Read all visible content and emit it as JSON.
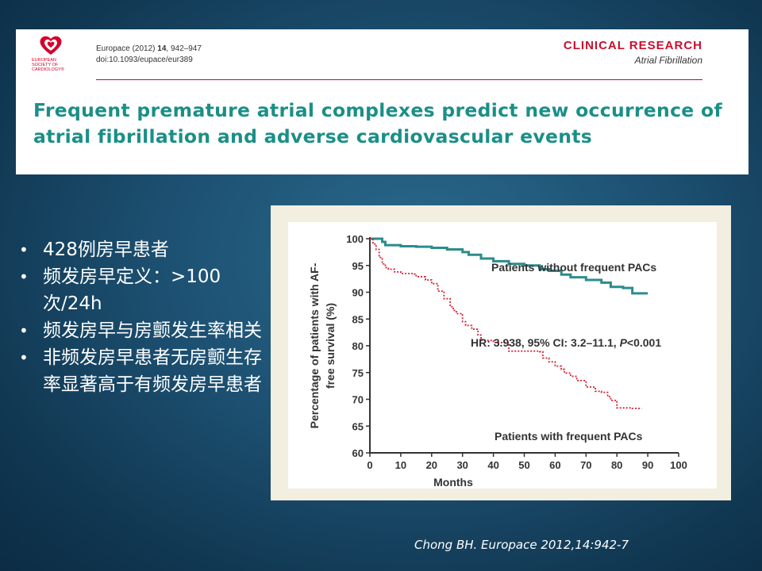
{
  "header": {
    "logo_text": [
      "EUROPEAN",
      "SOCIETY OF",
      "CARDIOLOGY®"
    ],
    "journal_ref_prefix": "Europace (2012) ",
    "journal_volume": "14",
    "journal_pages": ", 942–947",
    "doi": "doi:10.1093/eupace/eur389",
    "category": "CLINICAL RESEARCH",
    "section": "Atrial Fibrillation",
    "title": "Frequent premature atrial complexes predict new occurrence of atrial fibrillation and adverse cardiovascular events",
    "colors": {
      "accent_red": "#c8102e",
      "title_teal": "#1b8f87"
    }
  },
  "bullets": [
    "428例房早患者",
    "频发房早定义：>100次/24h",
    "频发房早与房颤发生率相关",
    "非频发房早患者无房颤生存率显著高于有频发房早患者"
  ],
  "chart_data": {
    "type": "line",
    "title": "",
    "xlabel": "Months",
    "ylabel": "Percentage of patients with AF-free survival (%)",
    "xlim": [
      0,
      100
    ],
    "ylim": [
      60,
      100
    ],
    "xticks": [
      0,
      10,
      20,
      30,
      40,
      50,
      60,
      70,
      80,
      90,
      100
    ],
    "yticks": [
      60,
      65,
      70,
      75,
      80,
      85,
      90,
      95,
      100
    ],
    "series": [
      {
        "name": "Patients without frequent PACs",
        "color": "#2b8c8c",
        "style": "solid",
        "x": [
          0,
          2,
          4,
          5,
          10,
          15,
          20,
          25,
          30,
          32,
          36,
          40,
          45,
          50,
          55,
          58,
          62,
          65,
          70,
          75,
          78,
          82,
          85,
          90
        ],
        "y": [
          100,
          100,
          99.4,
          98.8,
          98.6,
          98.5,
          98.3,
          98.0,
          97.5,
          97.0,
          96.3,
          95.8,
          95.3,
          95.0,
          94.3,
          94.0,
          93.3,
          92.8,
          92.3,
          91.8,
          91.0,
          90.8,
          89.8,
          89.8
        ]
      },
      {
        "name": "Patients with frequent PACs",
        "color": "#d22035",
        "style": "dotted",
        "x": [
          0,
          1,
          2,
          3,
          4,
          5,
          6,
          8,
          10,
          14,
          15,
          18,
          20,
          22,
          24,
          26,
          27,
          28,
          30,
          31,
          33,
          35,
          36,
          40,
          45,
          50,
          55,
          56,
          58,
          60,
          62,
          63,
          65,
          67,
          70,
          73,
          75,
          77,
          78,
          80,
          85,
          88
        ],
        "y": [
          100,
          99,
          98,
          96.5,
          95.3,
          94.6,
          94.3,
          93.8,
          93.5,
          93.4,
          92.9,
          92.3,
          91.6,
          90.2,
          88.8,
          87.3,
          86.6,
          86.0,
          84.5,
          83.8,
          83.1,
          82.0,
          81.0,
          80.6,
          79.0,
          79.0,
          78.9,
          77.7,
          77.0,
          76.2,
          75.6,
          74.9,
          74.3,
          73.5,
          72.3,
          71.5,
          71.3,
          70.5,
          69.8,
          68.4,
          68.3,
          68.3
        ]
      }
    ],
    "annotations": [
      "HR: 3.938, 95% CI: 3.2–11.1, ",
      "P",
      "<0.001"
    ]
  },
  "citation": "Chong BH. Europace 2012,14:942-7"
}
